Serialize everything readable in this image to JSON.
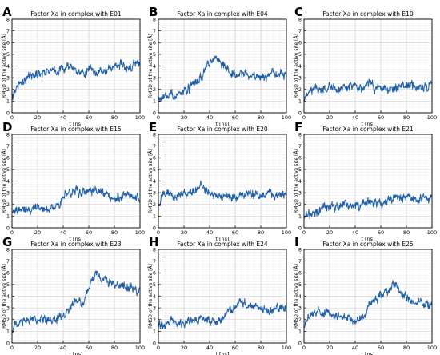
{
  "figure": {
    "panel_labels": [
      "A",
      "B",
      "C",
      "D",
      "E",
      "F",
      "G",
      "H",
      "I"
    ]
  },
  "chart_data": [
    {
      "type": "line",
      "label": "A",
      "title": "Factor Xa in complex with E01",
      "xlabel": "t [ns]",
      "ylabel": "RMSD of the active site [Å]",
      "xlim": [
        0,
        100
      ],
      "ylim": [
        0,
        8
      ],
      "grid": true,
      "xticks": [
        0,
        20,
        40,
        60,
        80,
        100
      ],
      "yticks": [
        0,
        1,
        2,
        3,
        4,
        5,
        6,
        7,
        8
      ],
      "color": "#1f5fa8",
      "x": [
        0,
        2,
        5,
        10,
        15,
        20,
        25,
        30,
        35,
        40,
        45,
        50,
        55,
        60,
        65,
        70,
        75,
        80,
        85,
        90,
        95,
        100
      ],
      "y": [
        1.2,
        1.8,
        2.5,
        2.9,
        3.1,
        3.3,
        3.5,
        3.7,
        3.5,
        3.8,
        3.9,
        3.6,
        3.3,
        3.8,
        3.2,
        3.5,
        3.6,
        3.9,
        4.1,
        3.9,
        4.1,
        4.2
      ]
    },
    {
      "type": "line",
      "label": "B",
      "title": "Factor Xa in complex with E04",
      "xlabel": "t [ns]",
      "ylabel": "RMSD of the active site [Å]",
      "xlim": [
        0,
        100
      ],
      "ylim": [
        0,
        8
      ],
      "grid": true,
      "xticks": [
        0,
        20,
        40,
        60,
        80,
        100
      ],
      "yticks": [
        0,
        1,
        2,
        3,
        4,
        5,
        6,
        7,
        8
      ],
      "color": "#1f5fa8",
      "x": [
        0,
        5,
        10,
        15,
        20,
        25,
        30,
        35,
        38,
        40,
        45,
        50,
        55,
        60,
        65,
        70,
        75,
        80,
        85,
        90,
        95,
        100
      ],
      "y": [
        1.2,
        1.3,
        1.4,
        1.5,
        1.8,
        2.2,
        2.8,
        3.3,
        4.2,
        4.4,
        4.6,
        4.3,
        3.6,
        3.2,
        3.4,
        3.3,
        3.2,
        3.1,
        3.3,
        3.4,
        3.2,
        3.3
      ]
    },
    {
      "type": "line",
      "label": "C",
      "title": "Factor Xa in complex with E10",
      "xlabel": "t [ns]",
      "ylabel": "RMSD of the active site [Å]",
      "xlim": [
        0,
        100
      ],
      "ylim": [
        0,
        8
      ],
      "grid": true,
      "xticks": [
        0,
        20,
        40,
        60,
        80,
        100
      ],
      "yticks": [
        0,
        1,
        2,
        3,
        4,
        5,
        6,
        7,
        8
      ],
      "color": "#1f5fa8",
      "x": [
        0,
        2,
        5,
        10,
        15,
        20,
        25,
        30,
        35,
        40,
        45,
        50,
        55,
        60,
        65,
        70,
        75,
        80,
        85,
        90,
        95,
        100
      ],
      "y": [
        1.1,
        1.4,
        1.8,
        2.0,
        2.0,
        2.1,
        2.1,
        2.0,
        2.2,
        2.3,
        2.2,
        2.6,
        2.1,
        2.1,
        2.0,
        2.1,
        2.2,
        2.3,
        2.4,
        2.3,
        2.2,
        2.4
      ]
    },
    {
      "type": "line",
      "label": "D",
      "title": "Factor Xa in complex with E15",
      "xlabel": "t [ns]",
      "ylabel": "RMSD of the active site [Å]",
      "xlim": [
        0,
        100
      ],
      "ylim": [
        0,
        8
      ],
      "grid": true,
      "xticks": [
        0,
        20,
        40,
        60,
        80,
        100
      ],
      "yticks": [
        0,
        1,
        2,
        3,
        4,
        5,
        6,
        7,
        8
      ],
      "color": "#1f5fa8",
      "x": [
        0,
        5,
        10,
        15,
        20,
        25,
        30,
        35,
        38,
        40,
        45,
        50,
        55,
        60,
        65,
        70,
        75,
        80,
        85,
        90,
        95,
        100
      ],
      "y": [
        1.5,
        1.6,
        1.6,
        1.7,
        1.7,
        1.7,
        1.7,
        1.8,
        1.8,
        2.8,
        3.1,
        3.0,
        3.1,
        3.2,
        3.2,
        3.0,
        2.6,
        2.4,
        2.7,
        2.9,
        2.5,
        2.4
      ]
    },
    {
      "type": "line",
      "label": "E",
      "title": "Factor Xa in complex with E20",
      "xlabel": "t [ns]",
      "ylabel": "RMSD of the active site [Å]",
      "xlim": [
        0,
        100
      ],
      "ylim": [
        0,
        8
      ],
      "grid": true,
      "xticks": [
        0,
        20,
        40,
        60,
        80,
        100
      ],
      "yticks": [
        0,
        1,
        2,
        3,
        4,
        5,
        6,
        7,
        8
      ],
      "color": "#1f5fa8",
      "x": [
        0,
        2,
        5,
        10,
        15,
        20,
        25,
        30,
        33,
        35,
        40,
        45,
        50,
        55,
        60,
        65,
        70,
        75,
        80,
        85,
        90,
        100
      ],
      "y": [
        2.0,
        2.6,
        2.9,
        2.8,
        2.7,
        2.8,
        3.0,
        3.3,
        3.6,
        3.4,
        2.9,
        2.7,
        2.6,
        2.7,
        2.6,
        2.7,
        2.8,
        2.6,
        2.7,
        2.9,
        2.8,
        3.0
      ]
    },
    {
      "type": "line",
      "label": "F",
      "title": "Factor Xa in complex with E21",
      "xlabel": "t [ns]",
      "ylabel": "RMSD of the active site [Å]",
      "xlim": [
        0,
        100
      ],
      "ylim": [
        0,
        8
      ],
      "grid": true,
      "xticks": [
        0,
        20,
        40,
        60,
        80,
        100
      ],
      "yticks": [
        0,
        1,
        2,
        3,
        4,
        5,
        6,
        7,
        8
      ],
      "color": "#1f5fa8",
      "x": [
        0,
        5,
        10,
        15,
        20,
        25,
        30,
        35,
        40,
        45,
        50,
        55,
        60,
        65,
        70,
        75,
        80,
        85,
        90,
        95,
        100
      ],
      "y": [
        1.0,
        1.1,
        1.3,
        1.6,
        1.8,
        1.9,
        2.1,
        1.9,
        1.8,
        2.0,
        2.2,
        2.2,
        2.1,
        2.3,
        2.5,
        2.6,
        2.7,
        2.6,
        2.6,
        2.7,
        2.6
      ]
    },
    {
      "type": "line",
      "label": "G",
      "title": "Factor Xa in complex with E23",
      "xlabel": "t [ns]",
      "ylabel": "RMSD of the active site [Å]",
      "xlim": [
        0,
        100
      ],
      "ylim": [
        0,
        8
      ],
      "grid": true,
      "xticks": [
        0,
        20,
        40,
        60,
        80,
        100
      ],
      "yticks": [
        0,
        1,
        2,
        3,
        4,
        5,
        6,
        7,
        8
      ],
      "color": "#1f5fa8",
      "x": [
        0,
        2,
        5,
        10,
        15,
        20,
        25,
        30,
        35,
        40,
        45,
        50,
        55,
        60,
        63,
        65,
        68,
        70,
        75,
        80,
        85,
        90,
        95,
        100
      ],
      "y": [
        1.0,
        1.5,
        1.7,
        1.9,
        2.0,
        1.9,
        2.0,
        1.9,
        2.0,
        2.4,
        3.0,
        3.5,
        3.3,
        4.5,
        5.5,
        5.9,
        5.8,
        5.4,
        5.2,
        5.0,
        4.8,
        4.9,
        4.6,
        4.3
      ]
    },
    {
      "type": "line",
      "label": "H",
      "title": "Factor Xa in complex with E24",
      "xlabel": "t [ns]",
      "ylabel": "RMSD of the active site [Å]",
      "xlim": [
        0,
        100
      ],
      "ylim": [
        0,
        8
      ],
      "grid": true,
      "xticks": [
        0,
        20,
        40,
        60,
        80,
        100
      ],
      "yticks": [
        0,
        1,
        2,
        3,
        4,
        5,
        6,
        7,
        8
      ],
      "color": "#1f5fa8",
      "x": [
        0,
        5,
        10,
        15,
        20,
        25,
        30,
        35,
        40,
        45,
        50,
        55,
        60,
        65,
        70,
        75,
        80,
        85,
        90,
        95,
        100
      ],
      "y": [
        1.5,
        1.6,
        1.8,
        1.7,
        1.8,
        2.0,
        1.9,
        2.1,
        2.0,
        1.8,
        2.3,
        2.8,
        3.2,
        3.6,
        3.0,
        3.2,
        2.9,
        2.8,
        2.9,
        3.0,
        2.8
      ]
    },
    {
      "type": "line",
      "label": "I",
      "title": "Factor Xa in complex with E25",
      "xlabel": "t [ns]",
      "ylabel": "RMSD of the active site [Å]",
      "xlim": [
        0,
        100
      ],
      "ylim": [
        0,
        8
      ],
      "grid": true,
      "xticks": [
        0,
        20,
        40,
        60,
        80,
        100
      ],
      "yticks": [
        0,
        1,
        2,
        3,
        4,
        5,
        6,
        7,
        8
      ],
      "color": "#1f5fa8",
      "x": [
        0,
        2,
        5,
        10,
        15,
        20,
        25,
        30,
        35,
        40,
        45,
        48,
        50,
        55,
        60,
        65,
        70,
        72,
        75,
        80,
        85,
        90,
        95,
        100
      ],
      "y": [
        1.2,
        1.8,
        2.4,
        2.6,
        2.7,
        2.5,
        2.2,
        2.1,
        2.0,
        2.0,
        2.1,
        2.5,
        3.2,
        3.8,
        4.2,
        4.5,
        4.9,
        5.0,
        4.4,
        4.0,
        3.5,
        3.4,
        3.3,
        3.2
      ]
    }
  ]
}
